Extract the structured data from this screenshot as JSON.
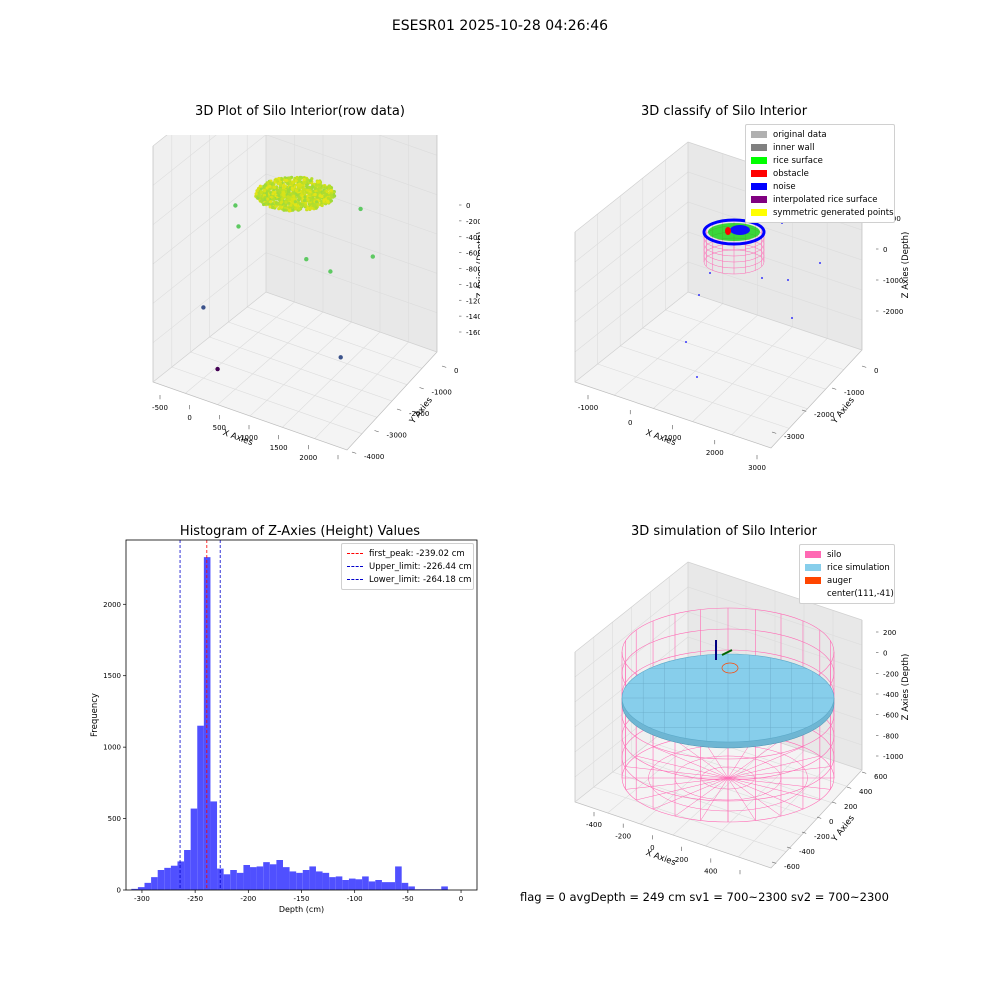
{
  "suptitle": "ESESR01 2025-10-28 04:26:46",
  "status": "flag = 0     avgDepth = 249 cm  sv1 = 700~2300  sv2 = 700~2300",
  "chart_data": [
    {
      "type": "scatter",
      "projection": "3d",
      "title": "3D Plot of Silo Interior(row data)",
      "xlabel": "X Axies",
      "ylabel": "Y Axies",
      "zlabel": "Z Axies (Depth)",
      "xticks": [
        "-500",
        "0",
        "500",
        "1000",
        "1500",
        "2000",
        "2500"
      ],
      "yticks": [
        "-4000",
        "-3000",
        "-2000",
        "-1000",
        "0"
      ],
      "zticks": [
        "0",
        "-200",
        "-400",
        "-600",
        "-800",
        "-1000",
        "-1200",
        "-1400",
        "-1600"
      ],
      "colormap": "viridis",
      "points": [
        {
          "x": 300,
          "y": -200,
          "z": -1580,
          "color": "#440154"
        },
        {
          "x": 100,
          "y": -100,
          "z": -1100,
          "color": "#3b528b"
        },
        {
          "x": 2100,
          "y": -900,
          "z": -1300,
          "color": "#3b528b"
        },
        {
          "x": 100,
          "y": -1700,
          "z": -560,
          "color": "#5ec962"
        },
        {
          "x": 150,
          "y": -1700,
          "z": -720,
          "color": "#5ec962"
        },
        {
          "x": 1400,
          "y": -1300,
          "z": -700,
          "color": "#5ec962"
        },
        {
          "x": 1700,
          "y": -1600,
          "z": -800,
          "color": "#5ec962"
        },
        {
          "x": 2200,
          "y": -2200,
          "z": -700,
          "color": "#5ec962"
        },
        {
          "x": 1900,
          "y": -2500,
          "z": -420,
          "color": "#5ec962"
        }
      ]
    },
    {
      "type": "scatter",
      "projection": "3d",
      "title": "3D classify of Silo Interior",
      "xlabel": "X Axies",
      "ylabel": "Y Axies",
      "zlabel": "Z Axies (Depth)",
      "xticks": [
        "-1000",
        "0",
        "1000",
        "2000",
        "3000"
      ],
      "yticks": [
        "-3000",
        "-2000",
        "-1000",
        "0"
      ],
      "zticks": [
        "1000",
        "0",
        "-1000",
        "-2000"
      ],
      "legend": [
        {
          "label": "original data",
          "color": "#b0b0b0"
        },
        {
          "label": "inner wall",
          "color": "#808080"
        },
        {
          "label": "rice surface",
          "color": "#00ff00"
        },
        {
          "label": "obstacle",
          "color": "#ff0000"
        },
        {
          "label": "noise",
          "color": "#0000ff"
        },
        {
          "label": "interpolated rice surface",
          "color": "#800080"
        },
        {
          "label": "symmetric generated points",
          "color": "#ffff00"
        }
      ],
      "legend_position": "upper right"
    },
    {
      "type": "bar",
      "title": "Histogram of Z-Axies (Height) Values",
      "xlabel": "Depth (cm)",
      "ylabel": "Frequency",
      "xlim": [
        -315,
        15
      ],
      "ylim": [
        0,
        2450
      ],
      "xticks": [
        -300,
        -250,
        -200,
        -150,
        -100,
        -50,
        0
      ],
      "yticks": [
        0,
        500,
        1000,
        1500,
        2000
      ],
      "bin_width": 6.2,
      "bin_start": -310,
      "values": [
        8,
        20,
        50,
        90,
        140,
        155,
        170,
        200,
        280,
        570,
        1150,
        2330,
        620,
        150,
        110,
        140,
        120,
        175,
        160,
        165,
        195,
        180,
        210,
        160,
        130,
        120,
        140,
        165,
        130,
        120,
        90,
        95,
        70,
        80,
        75,
        95,
        60,
        70,
        55,
        55,
        165,
        50,
        25,
        5,
        5,
        5,
        5,
        25
      ],
      "bar_color": "#5050ff",
      "vlines": [
        {
          "label": "first_peak: -239.02 cm",
          "x": -239.02,
          "color": "#ff0000"
        },
        {
          "label": "Upper_limit: -226.44 cm",
          "x": -226.44,
          "color": "#0000cc"
        },
        {
          "label": "Lower_limit: -264.18 cm",
          "x": -264.18,
          "color": "#0000cc"
        }
      ],
      "legend_position": "upper right"
    },
    {
      "type": "surface",
      "projection": "3d",
      "title": "3D simulation of Silo Interior",
      "xlabel": "X Axies",
      "ylabel": "Y Axies",
      "zlabel": "Z Axies (Depth)",
      "xticks": [
        "-400",
        "-200",
        "0",
        "200",
        "400",
        "600"
      ],
      "yticks": [
        "-600",
        "-400",
        "-200",
        "0",
        "200",
        "400",
        "600"
      ],
      "zticks": [
        "200",
        "0",
        "-200",
        "-400",
        "-600",
        "-800",
        "-1000"
      ],
      "legend": [
        {
          "label": "silo",
          "color": "#ff69b4"
        },
        {
          "label": "rice simulation",
          "color": "#87ceeb"
        },
        {
          "label": "auger",
          "color": "#ff4500"
        },
        {
          "label": "center(111,-41)",
          "color": "#ffffff"
        }
      ],
      "legend_position": "upper right"
    }
  ]
}
